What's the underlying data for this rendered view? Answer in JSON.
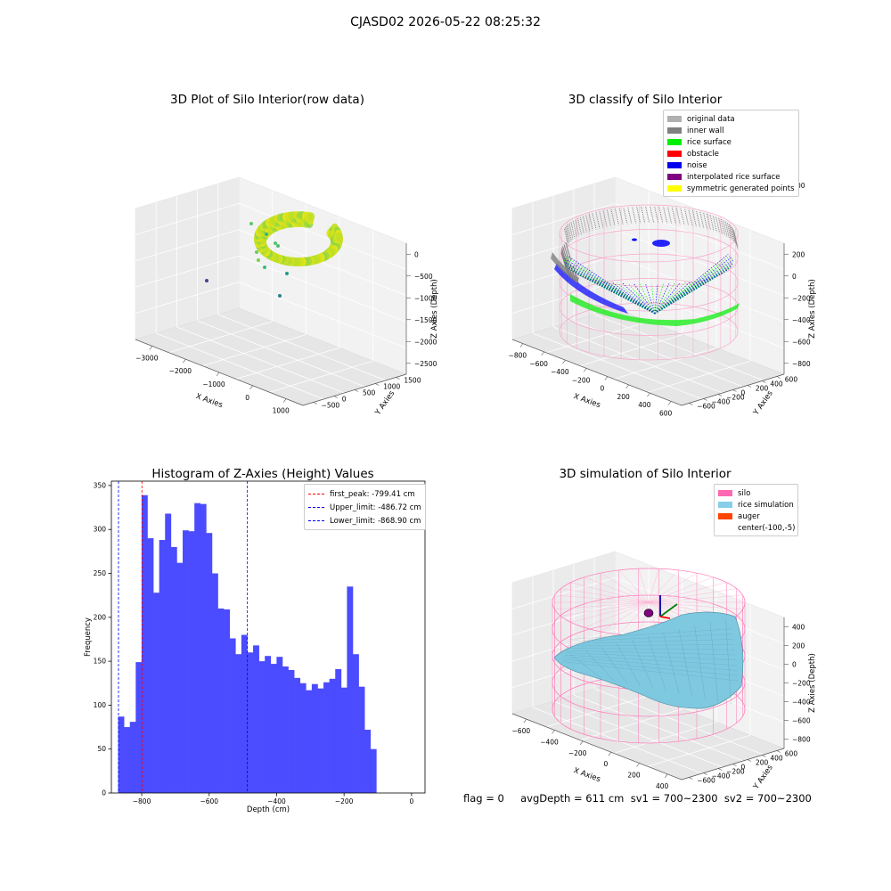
{
  "suptitle": "CJASD02 2026-05-22 08:25:32",
  "footer": "flag = 0     avgDepth = 611 cm  sv1 = 700~2300  sv2 = 700~2300",
  "colors": {
    "histogram_bar": "#4b4bff",
    "first_peak_line": "#ff0000",
    "limit_line": "#0000ff",
    "silo_wire": "#f8a8cc",
    "rice_surface": "#7ec8e0",
    "noise": "#0000ff",
    "rice": "#00ee00",
    "inner_wall": "#808080"
  },
  "chart_data": [
    {
      "type": "scatter",
      "title": "3D Plot of Silo Interior(row data)",
      "xlabel": "X Axies",
      "ylabel": "Y Axies",
      "zlabel": "Z Axies (Depth)",
      "x_ticks": [
        "−3000",
        "−2000",
        "−1000",
        "0",
        "1000"
      ],
      "y_ticks": [
        "−500",
        "0",
        "500",
        "1000",
        "1500"
      ],
      "z_ticks": [
        "0",
        "−500",
        "−1000",
        "−1500",
        "−2000",
        "−2500"
      ],
      "colormap": "viridis"
    },
    {
      "type": "scatter",
      "title": "3D classify of Silo Interior",
      "xlabel": "X Axies",
      "ylabel": "Y Axies",
      "zlabel": "Z Axies (Depth)",
      "x_ticks": [
        "−800",
        "−600",
        "−400",
        "−200",
        "0",
        "200",
        "400",
        "600"
      ],
      "y_ticks": [
        "−600",
        "−400",
        "−200",
        "0",
        "200",
        "400",
        "600"
      ],
      "z_ticks": [
        "200",
        "0",
        "−200",
        "−400",
        "−600",
        "−800"
      ],
      "z_partial_tick": "00",
      "legend": [
        {
          "label": "original data",
          "color": "#b0b0b0"
        },
        {
          "label": "inner wall",
          "color": "#808080"
        },
        {
          "label": "rice surface",
          "color": "#00ee00"
        },
        {
          "label": "obstacle",
          "color": "#ff0000"
        },
        {
          "label": "noise",
          "color": "#0000ee"
        },
        {
          "label": "interpolated rice surface",
          "color": "#800080"
        },
        {
          "label": "symmetric generated points",
          "color": "#ffff00"
        }
      ]
    },
    {
      "type": "bar",
      "title": "Histogram of Z-Axies (Height) Values",
      "xlabel": "Depth (cm)",
      "ylabel": "Frequency",
      "xlim": [
        -890,
        40
      ],
      "ylim": [
        0,
        355
      ],
      "x_ticks": [
        -800,
        -600,
        -400,
        -200,
        0
      ],
      "x_tick_labels": [
        "−800",
        "−600",
        "−400",
        "−200",
        "0"
      ],
      "y_ticks": [
        0,
        50,
        100,
        150,
        200,
        250,
        300,
        350
      ],
      "bin_start": -870,
      "bin_width": 17.4,
      "values": [
        87,
        75,
        81,
        149,
        339,
        290,
        228,
        288,
        318,
        280,
        262,
        299,
        298,
        330,
        329,
        296,
        250,
        210,
        209,
        176,
        158,
        180,
        160,
        168,
        150,
        156,
        147,
        155,
        144,
        140,
        131,
        125,
        117,
        124,
        119,
        126,
        130,
        141,
        120,
        235,
        158,
        121,
        72,
        50
      ],
      "vlines": [
        {
          "x": -799.41,
          "label": "first_peak: -799.41 cm",
          "color": "#ff0000"
        },
        {
          "x": -486.72,
          "label": "Upper_limit: -486.72 cm",
          "color": "#0000ff"
        },
        {
          "x": -868.9,
          "label": "Lower_limit: -868.90 cm",
          "color": "#0000ff"
        }
      ]
    },
    {
      "type": "area",
      "title": "3D simulation of Silo Interior",
      "xlabel": "X Axies",
      "ylabel": "Y Axies",
      "zlabel": "Z Axies (Depth)",
      "x_ticks": [
        "−600",
        "−400",
        "−200",
        "0",
        "200",
        "400"
      ],
      "y_ticks": [
        "−600",
        "−400",
        "−200",
        "0",
        "200",
        "400",
        "600"
      ],
      "z_ticks": [
        "400",
        "200",
        "0",
        "−200",
        "−400",
        "−600",
        "−800"
      ],
      "legend": [
        {
          "label": "silo",
          "color": "#ff69b4"
        },
        {
          "label": "rice simulation",
          "color": "#87ceeb"
        },
        {
          "label": "auger",
          "color": "#ff4500"
        },
        {
          "label": "center(-100,-5)",
          "color": ""
        }
      ]
    }
  ]
}
